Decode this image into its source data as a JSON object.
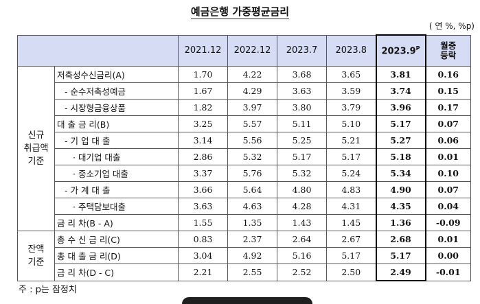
{
  "title": "예금은행 가중평균금리",
  "unit": "( 연 %, %p)",
  "headers": {
    "periods": [
      "2021.12",
      "2022.12",
      "2023.7",
      "2023.8"
    ],
    "latest": "2023.9",
    "latest_sup": "P",
    "change_line1": "월중",
    "change_line2": "등락"
  },
  "groups": {
    "new": [
      "신규",
      "취급액",
      "기준"
    ],
    "balance": [
      "잔액",
      "기준"
    ]
  },
  "rows": [
    {
      "label": "저축성수신금리(A)",
      "values": [
        "1.70",
        "4.22",
        "3.68",
        "3.65"
      ],
      "latest": "3.81",
      "change": "0.16"
    },
    {
      "label": "- 순수저축성예금",
      "values": [
        "1.67",
        "4.29",
        "3.63",
        "3.59"
      ],
      "latest": "3.74",
      "change": "0.15"
    },
    {
      "label": "- 시장형금융상품",
      "values": [
        "1.82",
        "3.97",
        "3.80",
        "3.79"
      ],
      "latest": "3.96",
      "change": "0.17"
    },
    {
      "label": "대 출 금 리(B)",
      "values": [
        "3.25",
        "5.57",
        "5.11",
        "5.10"
      ],
      "latest": "5.17",
      "change": "0.07"
    },
    {
      "label": "- 기 업 대 출",
      "values": [
        "3.14",
        "5.56",
        "5.25",
        "5.21"
      ],
      "latest": "5.27",
      "change": "0.06"
    },
    {
      "label": "· 대기업 대출",
      "values": [
        "2.86",
        "5.32",
        "5.17",
        "5.17"
      ],
      "latest": "5.18",
      "change": "0.01"
    },
    {
      "label": "· 중소기업 대출",
      "values": [
        "3.37",
        "5.76",
        "5.32",
        "5.24"
      ],
      "latest": "5.34",
      "change": "0.10"
    },
    {
      "label": "- 가 계 대 출",
      "values": [
        "3.66",
        "5.64",
        "4.80",
        "4.83"
      ],
      "latest": "4.90",
      "change": "0.07"
    },
    {
      "label": "· 주택담보대출",
      "values": [
        "3.63",
        "4.63",
        "4.28",
        "4.31"
      ],
      "latest": "4.35",
      "change": "0.04"
    },
    {
      "label": "금 리 차(B - A)",
      "values": [
        "1.55",
        "1.35",
        "1.43",
        "1.45"
      ],
      "latest": "1.36",
      "change": "-0.09"
    },
    {
      "label": "총 수 신 금 리(C)",
      "values": [
        "0.83",
        "2.37",
        "2.64",
        "2.67"
      ],
      "latest": "2.68",
      "change": "0.01"
    },
    {
      "label": "총 대 출 금 리(D)",
      "values": [
        "3.04",
        "4.92",
        "5.16",
        "5.17"
      ],
      "latest": "5.17",
      "change": "0.00"
    },
    {
      "label": "금 리 차(D - C)",
      "values": [
        "2.21",
        "2.55",
        "2.52",
        "2.50"
      ],
      "latest": "2.49",
      "change": "-0.01"
    }
  ],
  "note": "주 : p는 잠정치"
}
